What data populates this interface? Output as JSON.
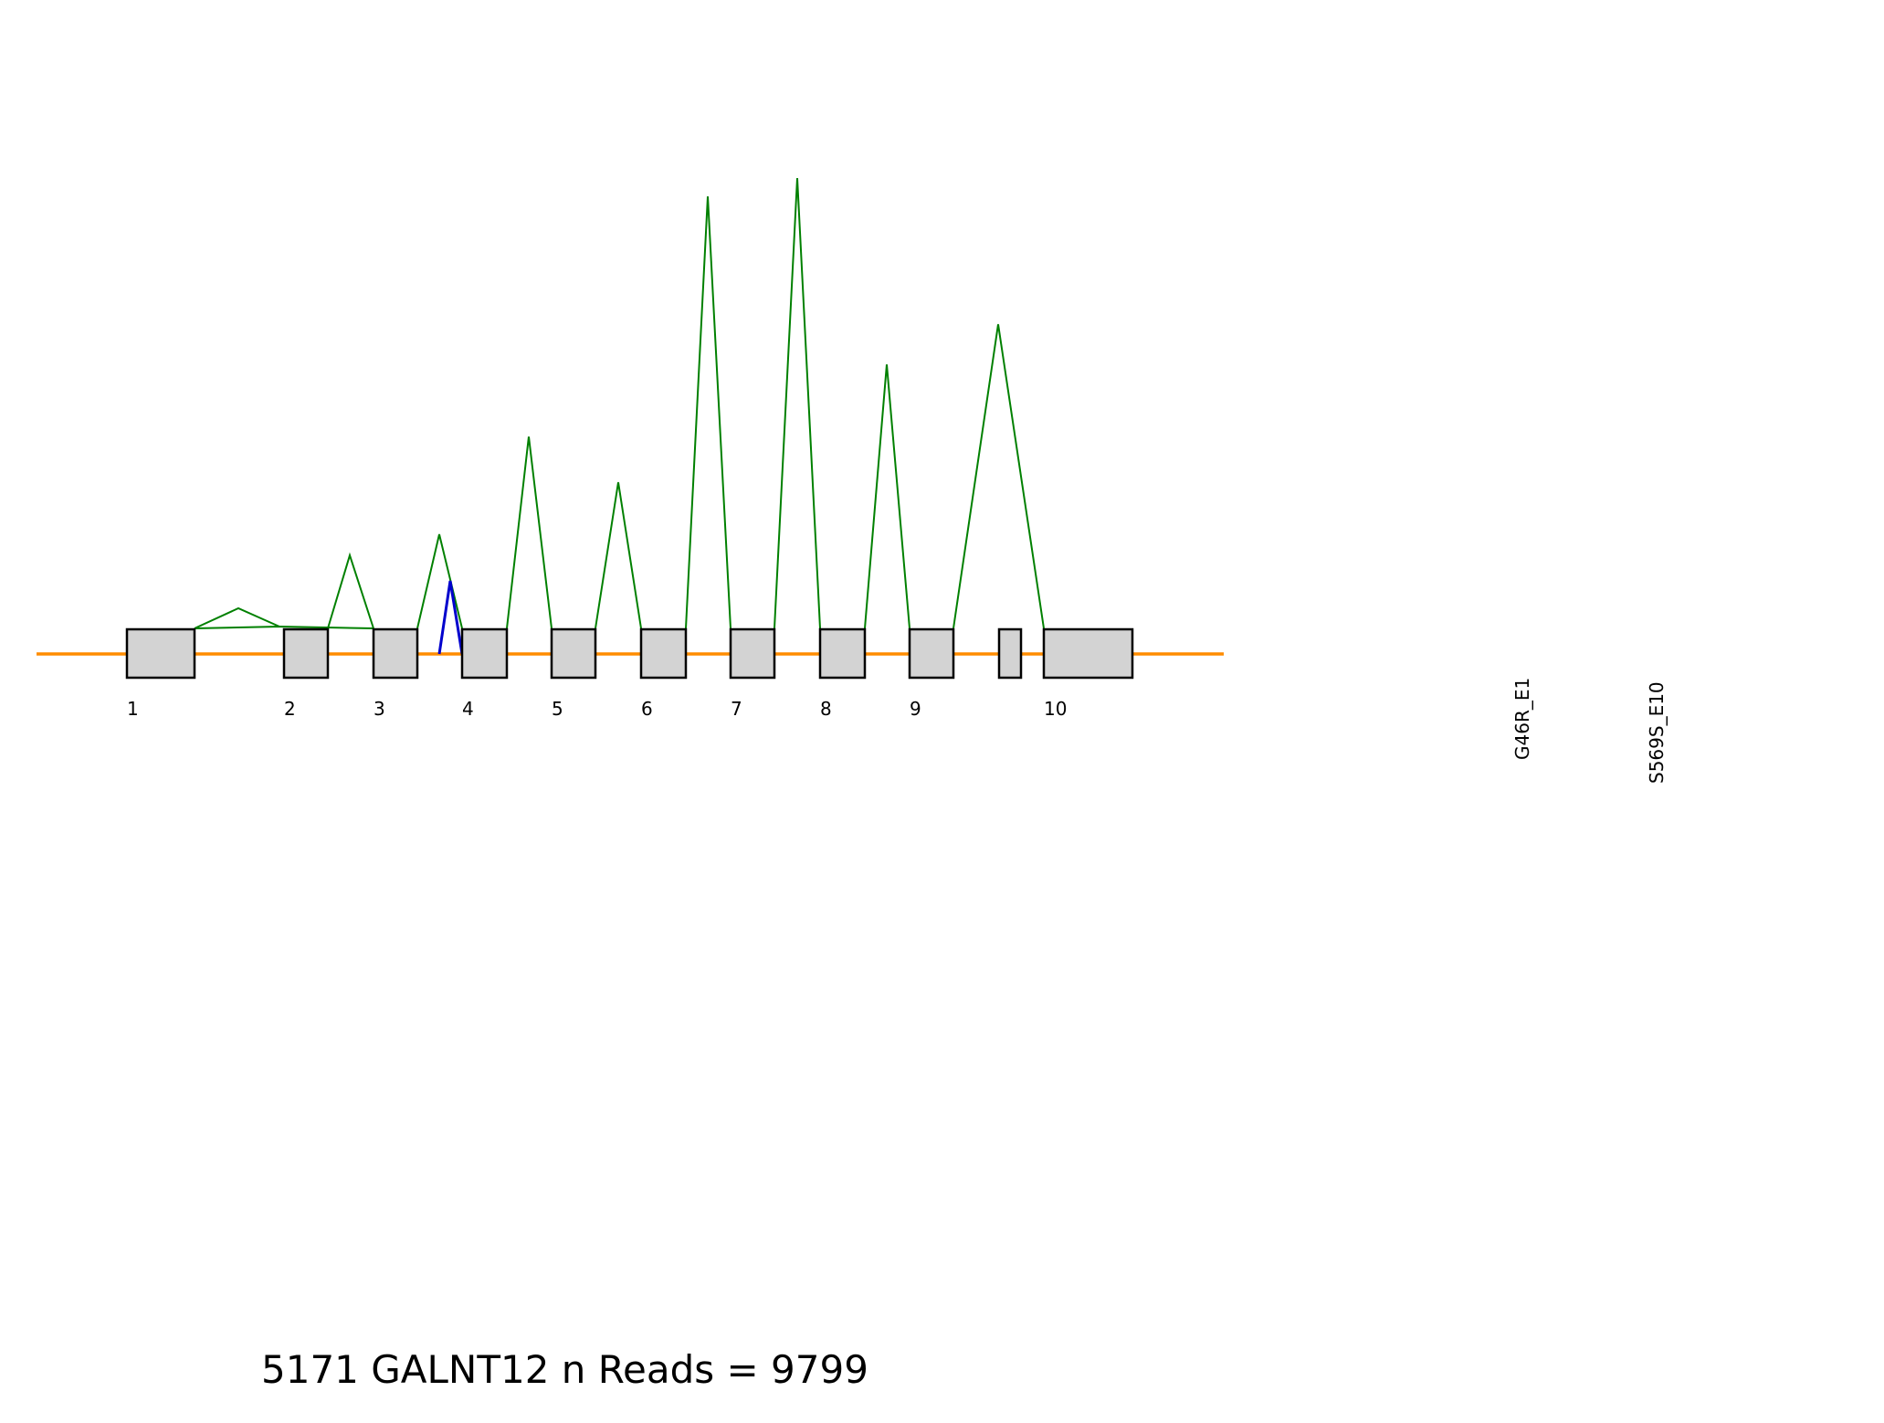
{
  "title": "5171 GALNT12 n Reads = 9799",
  "colors": {
    "intron_line": "#ff8c00",
    "exon_fill": "#d3d3d3",
    "exon_stroke": "#000000",
    "junction_primary": "#008000",
    "junction_alt": "#0000cd"
  },
  "exons": [
    {
      "label": "1"
    },
    {
      "label": "2"
    },
    {
      "label": "3"
    },
    {
      "label": "4"
    },
    {
      "label": "5"
    },
    {
      "label": "6"
    },
    {
      "label": "7"
    },
    {
      "label": "8"
    },
    {
      "label": "9"
    },
    {
      "label": ""
    },
    {
      "label": "10"
    }
  ],
  "variants": [
    {
      "label": "G46R_E1"
    },
    {
      "label": "S569S_E10"
    }
  ]
}
